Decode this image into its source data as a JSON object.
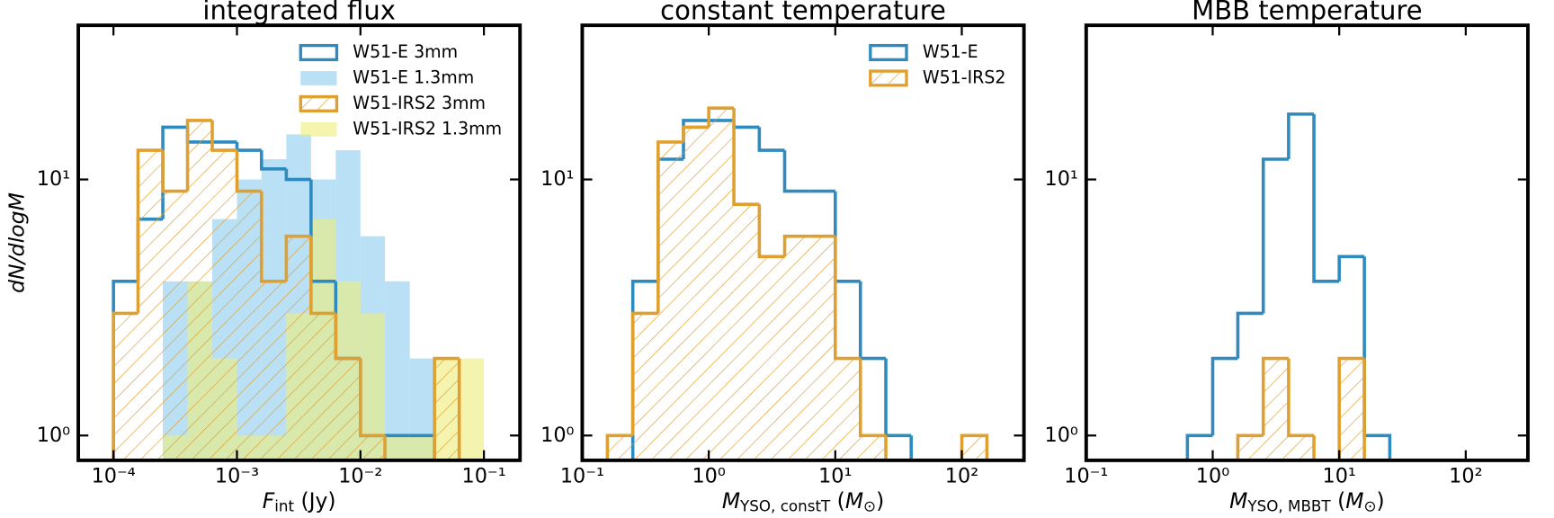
{
  "chart_data": [
    {
      "type": "histogram",
      "title": "integrated flux",
      "log_x": true,
      "log_y": true,
      "x_label": [
        "F",
        "int",
        " (Jy)"
      ],
      "y_label": "dN/dlogM",
      "xlim": [
        5.19e-05,
        0.196
      ],
      "ylim": [
        0.8,
        40
      ],
      "xticks": [
        {
          "value": 0.0001,
          "label": "10⁻⁴"
        },
        {
          "value": 0.001,
          "label": "10⁻³"
        },
        {
          "value": 0.01,
          "label": "10⁻²"
        },
        {
          "value": 0.1,
          "label": "10⁻¹"
        }
      ],
      "yticks": [
        {
          "value": 1,
          "label": "10⁰"
        },
        {
          "value": 10,
          "label": "10¹"
        }
      ],
      "legend": "upper right",
      "bins": [
        0.0001,
        0.000158,
        0.000251,
        0.000398,
        0.000631,
        0.001,
        0.00158,
        0.00251,
        0.00398,
        0.00631,
        0.01,
        0.0158,
        0.0251,
        0.0398,
        0.0631,
        0.1
      ],
      "series": [
        {
          "name": "W51-E 3mm",
          "color": "#2f8bbf",
          "histtype": "step",
          "values": [
            4,
            7,
            16,
            14,
            14,
            13,
            11,
            10,
            4,
            2,
            1,
            1,
            1,
            0,
            0
          ]
        },
        {
          "name": "W51-E 1.3mm",
          "color": "#a9d8f2",
          "histtype": "stepfilled",
          "alpha": 0.8,
          "values": [
            0,
            0,
            4,
            4,
            7,
            10,
            12,
            15,
            10,
            13,
            6,
            4,
            2,
            0,
            0
          ]
        },
        {
          "name": "W51-IRS2 3mm",
          "color": "#e0a030",
          "histtype": "step",
          "hatch": true,
          "values": [
            3,
            13,
            9,
            17,
            13,
            9,
            4,
            6,
            3,
            2,
            1,
            0,
            0,
            2,
            0
          ]
        },
        {
          "name": "W51-IRS2 1.3mm",
          "color": "#eeec7a",
          "histtype": "stepfilled",
          "alpha": 0.6,
          "values": [
            0,
            0,
            1,
            4,
            2,
            1,
            1,
            3,
            7,
            4,
            3,
            1,
            1,
            2,
            2
          ]
        }
      ]
    },
    {
      "type": "histogram",
      "title": "constant temperature",
      "log_x": true,
      "log_y": true,
      "x_label": [
        "M",
        "YSO, constT",
        " (",
        "M",
        "⊙",
        ")"
      ],
      "xlim": [
        0.1,
        310
      ],
      "ylim": [
        0.8,
        40
      ],
      "xticks": [
        {
          "value": 0.1,
          "label": "10⁻¹"
        },
        {
          "value": 1,
          "label": "10⁰"
        },
        {
          "value": 10,
          "label": "10¹"
        },
        {
          "value": 100,
          "label": "10²"
        }
      ],
      "yticks": [
        {
          "value": 1,
          "label": "10⁰"
        },
        {
          "value": 10,
          "label": "10¹"
        }
      ],
      "legend": "upper right",
      "bins": [
        0.158,
        0.251,
        0.398,
        0.631,
        1,
        1.58,
        2.51,
        3.98,
        6.31,
        10,
        15.8,
        25.1,
        39.8,
        63.1,
        100,
        158
      ],
      "series": [
        {
          "name": "W51-E",
          "color": "#2f8bbf",
          "histtype": "step",
          "values": [
            0,
            4,
            12,
            17,
            17,
            16,
            13,
            9,
            9,
            4,
            2,
            1,
            0,
            0,
            0
          ]
        },
        {
          "name": "W51-IRS2",
          "color": "#e0a030",
          "histtype": "step",
          "hatch": true,
          "values": [
            1,
            3,
            14,
            16,
            19,
            8,
            5,
            6,
            6,
            2,
            1,
            0,
            0,
            0,
            1
          ]
        }
      ]
    },
    {
      "type": "histogram",
      "title": "MBB temperature",
      "log_x": true,
      "log_y": true,
      "x_label": [
        "M",
        "YSO, MBBT",
        " (",
        "M",
        "⊙",
        ")"
      ],
      "xlim": [
        0.1,
        310
      ],
      "ylim": [
        0.8,
        40
      ],
      "xticks": [
        {
          "value": 0.1,
          "label": "10⁻¹"
        },
        {
          "value": 1,
          "label": "10⁰"
        },
        {
          "value": 10,
          "label": "10¹"
        },
        {
          "value": 100,
          "label": "10²"
        }
      ],
      "yticks": [
        {
          "value": 1,
          "label": "10⁰"
        },
        {
          "value": 10,
          "label": "10¹"
        }
      ],
      "bins": [
        0.631,
        1,
        1.58,
        2.51,
        3.98,
        6.31,
        10,
        15.8,
        25.1
      ],
      "series": [
        {
          "name": "W51-E",
          "color": "#2f8bbf",
          "histtype": "step",
          "values": [
            1,
            2,
            3,
            12,
            18,
            4,
            5,
            1
          ]
        },
        {
          "name": "W51-IRS2",
          "color": "#e0a030",
          "histtype": "step",
          "hatch": true,
          "values": [
            0,
            0,
            1,
            2,
            1,
            0,
            2,
            0
          ]
        }
      ]
    }
  ]
}
